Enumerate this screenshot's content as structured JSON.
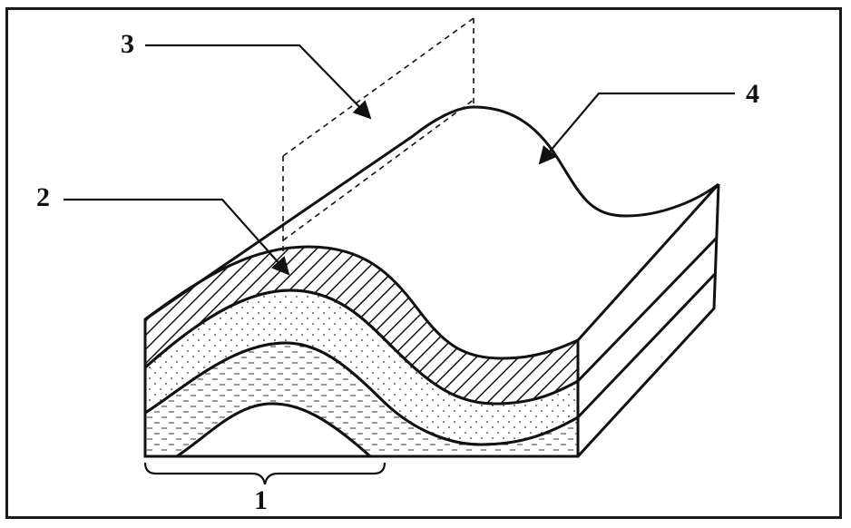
{
  "labels": {
    "one": "1",
    "two": "2",
    "three": "3",
    "four": "4"
  },
  "colors": {
    "ink": "#111111",
    "paper": "#ffffff"
  }
}
